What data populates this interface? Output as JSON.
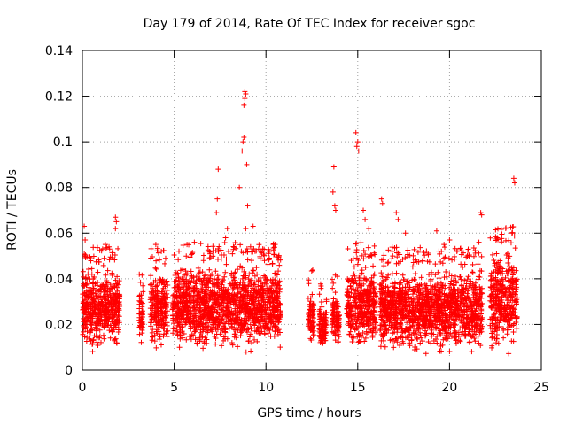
{
  "chart_data": {
    "type": "scatter",
    "title": "Day 179 of 2014, Rate Of TEC Index for receiver sgoc",
    "xlabel": "GPS time / hours",
    "ylabel": "ROTI / TECUs",
    "xlim": [
      0,
      25
    ],
    "ylim": [
      0,
      0.14
    ],
    "xticks": [
      {
        "value": 0,
        "label": "0"
      },
      {
        "value": 5,
        "label": "5"
      },
      {
        "value": 10,
        "label": "10"
      },
      {
        "value": 15,
        "label": "15"
      },
      {
        "value": 20,
        "label": "20"
      },
      {
        "value": 25,
        "label": "25"
      }
    ],
    "yticks": [
      {
        "value": 0,
        "label": "0"
      },
      {
        "value": 0.02,
        "label": "0.02"
      },
      {
        "value": 0.04,
        "label": "0.04"
      },
      {
        "value": 0.06,
        "label": "0.06"
      },
      {
        "value": 0.08,
        "label": "0.08"
      },
      {
        "value": 0.1,
        "label": "0.1"
      },
      {
        "value": 0.12,
        "label": "0.12"
      },
      {
        "value": 0.14,
        "label": "0.14"
      }
    ],
    "grid": true,
    "marker": "+",
    "series": [
      {
        "name": "ROTI",
        "color": "#ff0000",
        "segments": [
          {
            "x_start": 0.0,
            "x_end": 2.05,
            "y_min": 0.006,
            "y_max": 0.046
          },
          {
            "x_start": 3.1,
            "x_end": 3.3,
            "y_min": 0.01,
            "y_max": 0.036
          },
          {
            "x_start": 3.7,
            "x_end": 4.65,
            "y_min": 0.007,
            "y_max": 0.046
          },
          {
            "x_start": 4.9,
            "x_end": 10.8,
            "y_min": 0.006,
            "y_max": 0.048
          },
          {
            "x_start": 12.3,
            "x_end": 12.6,
            "y_min": 0.01,
            "y_max": 0.036
          },
          {
            "x_start": 12.9,
            "x_end": 13.3,
            "y_min": 0.008,
            "y_max": 0.03
          },
          {
            "x_start": 13.6,
            "x_end": 14.0,
            "y_min": 0.01,
            "y_max": 0.034
          },
          {
            "x_start": 14.4,
            "x_end": 16.0,
            "y_min": 0.007,
            "y_max": 0.048
          },
          {
            "x_start": 16.2,
            "x_end": 21.8,
            "y_min": 0.005,
            "y_max": 0.046
          },
          {
            "x_start": 22.2,
            "x_end": 23.7,
            "y_min": 0.005,
            "y_max": 0.055
          }
        ],
        "outliers": [
          {
            "x": 0.1,
            "y": 0.063
          },
          {
            "x": 0.15,
            "y": 0.057
          },
          {
            "x": 1.25,
            "y": 0.055
          },
          {
            "x": 1.45,
            "y": 0.054
          },
          {
            "x": 1.8,
            "y": 0.067
          },
          {
            "x": 1.85,
            "y": 0.065
          },
          {
            "x": 1.8,
            "y": 0.062
          },
          {
            "x": 3.1,
            "y": 0.042
          },
          {
            "x": 4.0,
            "y": 0.055
          },
          {
            "x": 4.3,
            "y": 0.052
          },
          {
            "x": 5.7,
            "y": 0.055
          },
          {
            "x": 6.1,
            "y": 0.056
          },
          {
            "x": 7.3,
            "y": 0.069
          },
          {
            "x": 7.35,
            "y": 0.075
          },
          {
            "x": 7.4,
            "y": 0.088
          },
          {
            "x": 7.8,
            "y": 0.058
          },
          {
            "x": 7.9,
            "y": 0.062
          },
          {
            "x": 8.55,
            "y": 0.08
          },
          {
            "x": 8.7,
            "y": 0.096
          },
          {
            "x": 8.75,
            "y": 0.1
          },
          {
            "x": 8.8,
            "y": 0.102
          },
          {
            "x": 8.8,
            "y": 0.116
          },
          {
            "x": 8.85,
            "y": 0.119
          },
          {
            "x": 8.9,
            "y": 0.121
          },
          {
            "x": 8.85,
            "y": 0.122
          },
          {
            "x": 8.95,
            "y": 0.09
          },
          {
            "x": 9.0,
            "y": 0.072
          },
          {
            "x": 8.9,
            "y": 0.062
          },
          {
            "x": 9.3,
            "y": 0.063
          },
          {
            "x": 9.6,
            "y": 0.053
          },
          {
            "x": 10.5,
            "y": 0.055
          },
          {
            "x": 13.7,
            "y": 0.089
          },
          {
            "x": 13.65,
            "y": 0.078
          },
          {
            "x": 13.75,
            "y": 0.072
          },
          {
            "x": 13.8,
            "y": 0.07
          },
          {
            "x": 14.9,
            "y": 0.104
          },
          {
            "x": 15.0,
            "y": 0.1
          },
          {
            "x": 14.95,
            "y": 0.098
          },
          {
            "x": 15.05,
            "y": 0.096
          },
          {
            "x": 15.3,
            "y": 0.07
          },
          {
            "x": 15.4,
            "y": 0.066
          },
          {
            "x": 15.6,
            "y": 0.062
          },
          {
            "x": 16.3,
            "y": 0.075
          },
          {
            "x": 16.35,
            "y": 0.073
          },
          {
            "x": 17.1,
            "y": 0.069
          },
          {
            "x": 17.2,
            "y": 0.066
          },
          {
            "x": 17.6,
            "y": 0.06
          },
          {
            "x": 19.3,
            "y": 0.061
          },
          {
            "x": 19.7,
            "y": 0.055
          },
          {
            "x": 20.0,
            "y": 0.057
          },
          {
            "x": 20.4,
            "y": 0.052
          },
          {
            "x": 21.7,
            "y": 0.069
          },
          {
            "x": 21.75,
            "y": 0.068
          },
          {
            "x": 21.6,
            "y": 0.056
          },
          {
            "x": 22.6,
            "y": 0.058
          },
          {
            "x": 23.4,
            "y": 0.06
          },
          {
            "x": 23.5,
            "y": 0.084
          },
          {
            "x": 23.55,
            "y": 0.082
          }
        ]
      }
    ]
  }
}
